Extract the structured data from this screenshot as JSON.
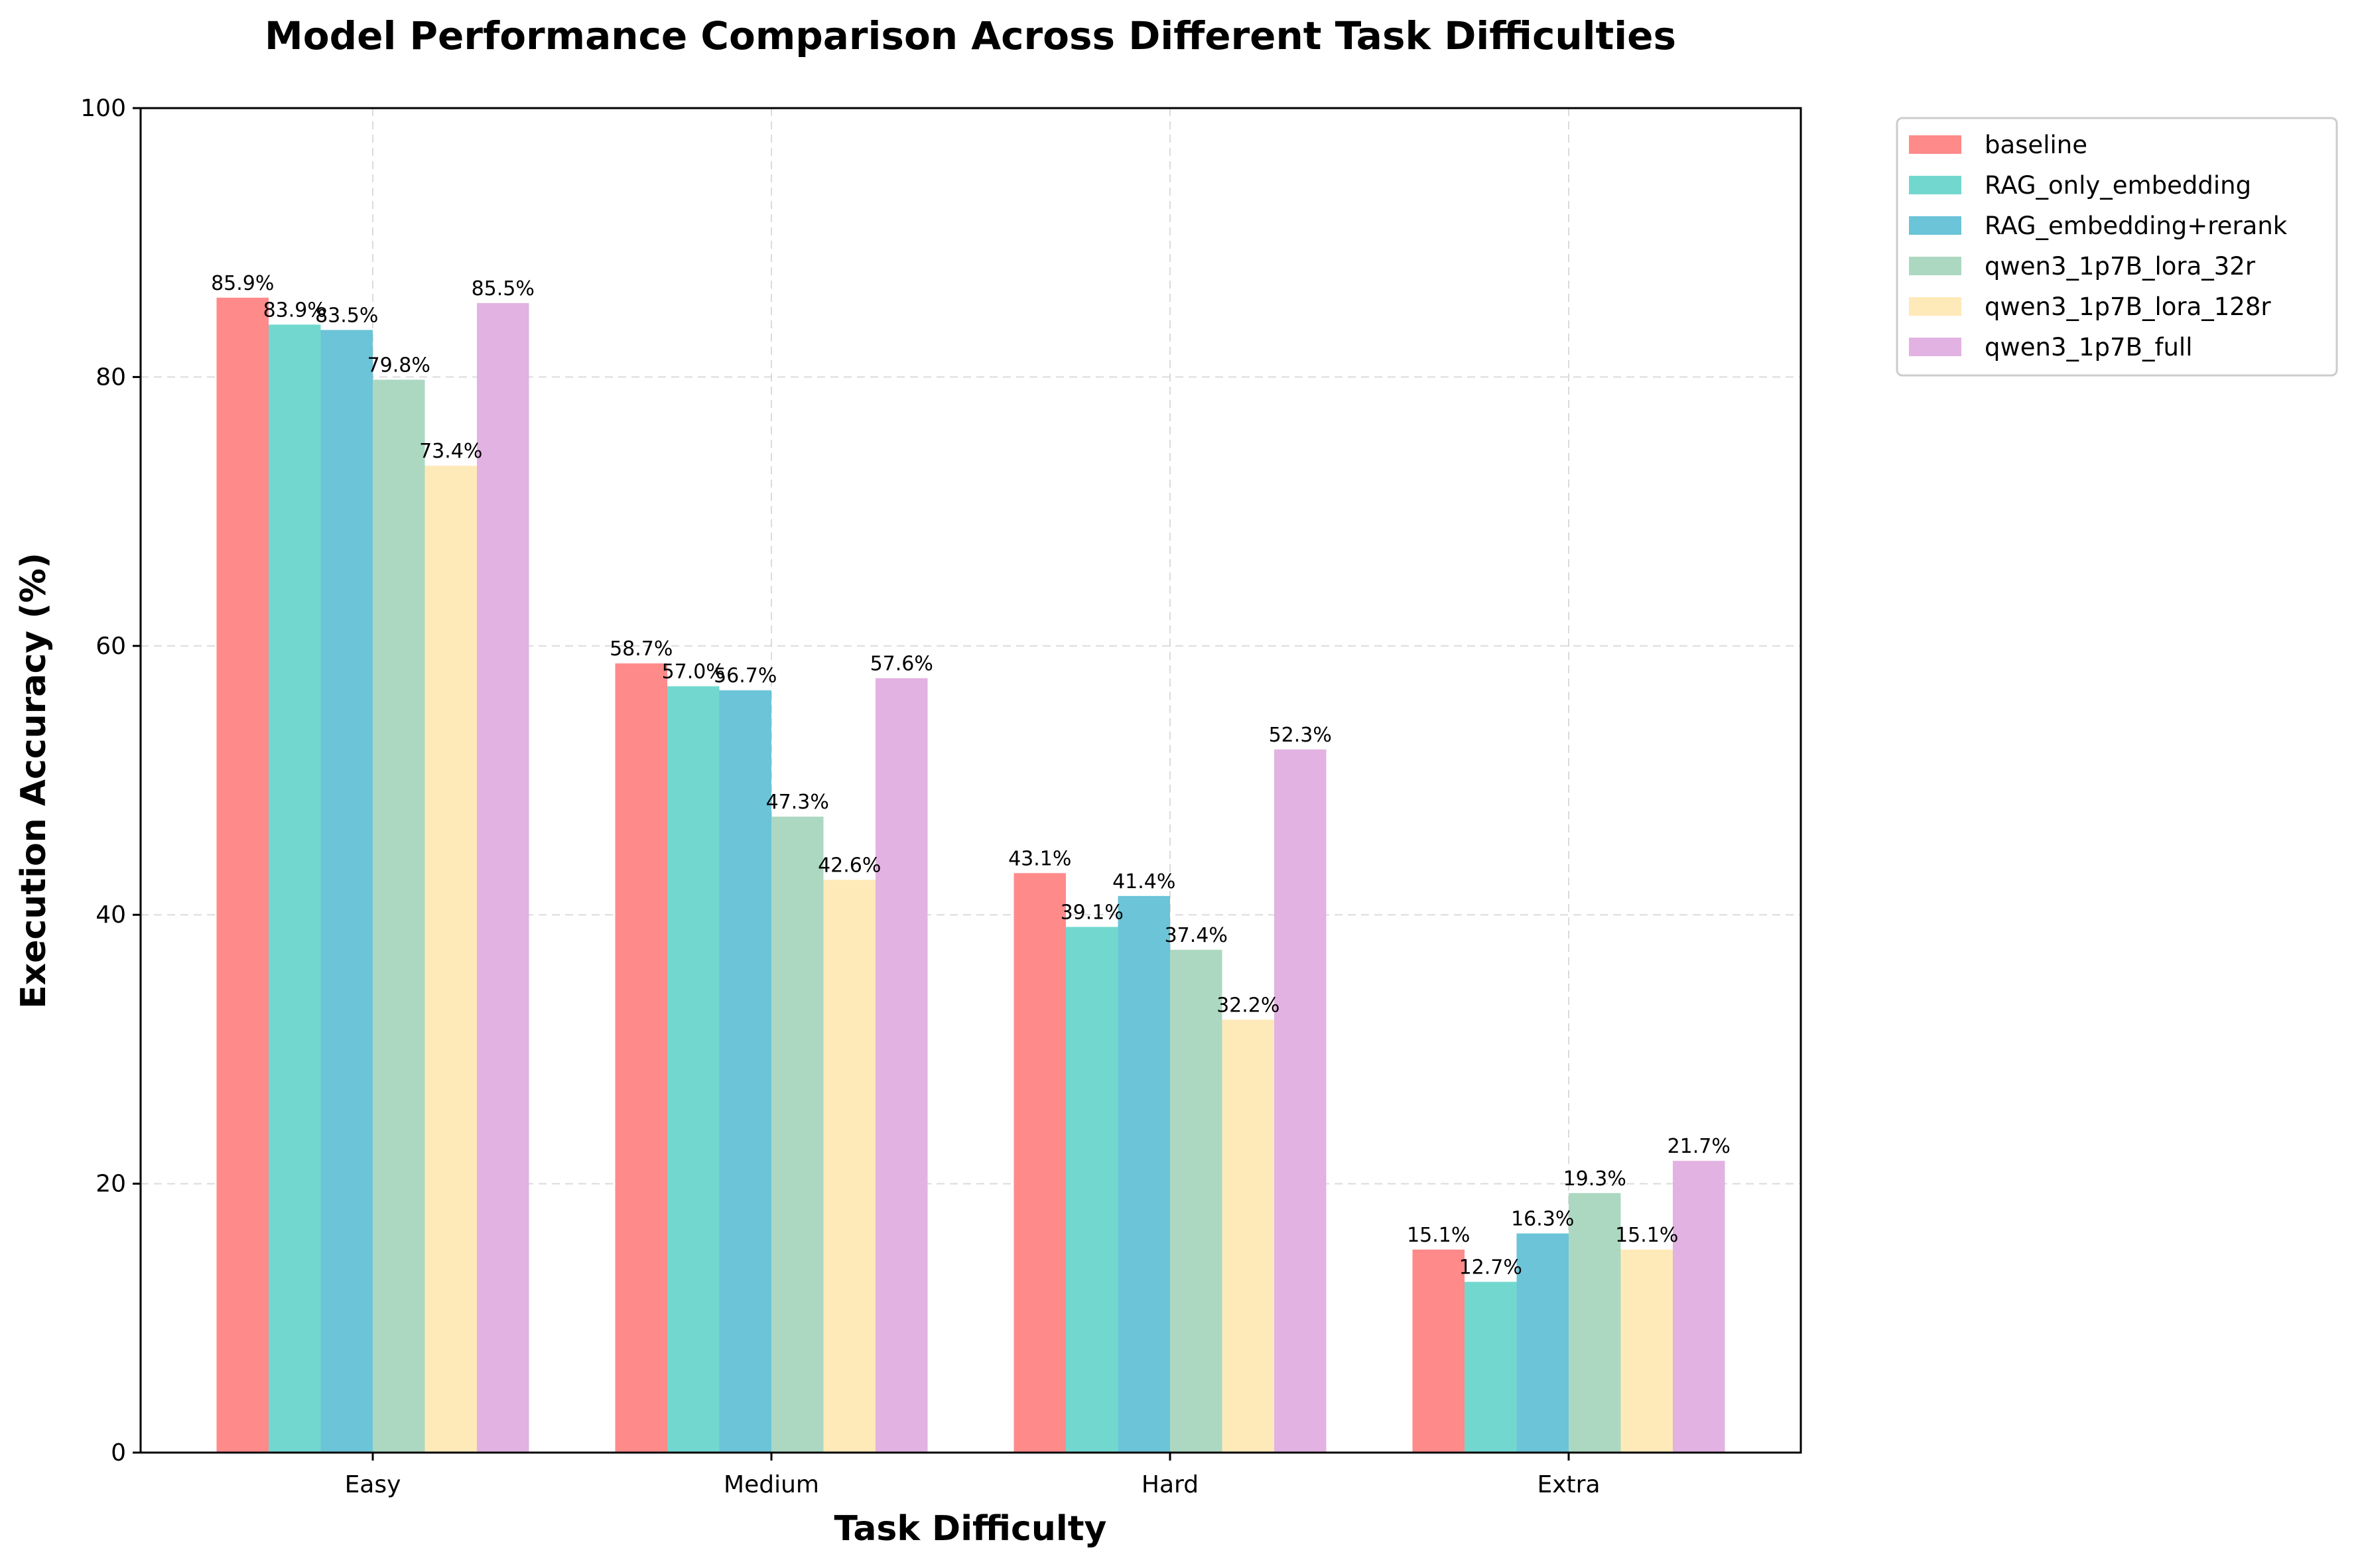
{
  "chart_data": {
    "type": "bar",
    "title": "Model Performance Comparison Across Different Task Difficulties",
    "xlabel": "Task Difficulty",
    "ylabel": "Execution Accuracy (%)",
    "ylim": [
      0,
      100
    ],
    "yticks": [
      "0",
      "20",
      "40",
      "60",
      "80",
      "100"
    ],
    "grid": true,
    "legend_position": "outside-top-right",
    "categories": [
      "Easy",
      "Medium",
      "Hard",
      "Extra"
    ],
    "series": [
      {
        "name": "baseline",
        "color": "#ff8a8a",
        "values": [
          85.9,
          58.7,
          43.1,
          15.1
        ],
        "labels": [
          "85.9%",
          "58.7%",
          "43.1%",
          "15.1%"
        ]
      },
      {
        "name": "RAG_only_embedding",
        "color": "#72d8cf",
        "values": [
          83.9,
          57.0,
          39.1,
          12.7
        ],
        "labels": [
          "83.9%",
          "57.0%",
          "39.1%",
          "12.7%"
        ]
      },
      {
        "name": "RAG_embedding+rerank",
        "color": "#6bc4d8",
        "values": [
          83.5,
          56.7,
          41.4,
          16.3
        ],
        "labels": [
          "83.5%",
          "56.7%",
          "41.4%",
          "16.3%"
        ]
      },
      {
        "name": "qwen3_1p7B_lora_32r",
        "color": "#acd8c2",
        "values": [
          79.8,
          47.3,
          37.4,
          19.3
        ],
        "labels": [
          "79.8%",
          "47.3%",
          "37.4%",
          "19.3%"
        ]
      },
      {
        "name": "qwen3_1p7B_lora_128r",
        "color": "#feeab8",
        "values": [
          73.4,
          42.6,
          32.2,
          15.1
        ],
        "labels": [
          "73.4%",
          "42.6%",
          "32.2%",
          "15.1%"
        ]
      },
      {
        "name": "qwen3_1p7B_full",
        "color": "#e2b2e2",
        "values": [
          85.5,
          57.6,
          52.3,
          21.7
        ],
        "labels": [
          "85.5%",
          "57.6%",
          "52.3%",
          "21.7%"
        ]
      }
    ]
  }
}
